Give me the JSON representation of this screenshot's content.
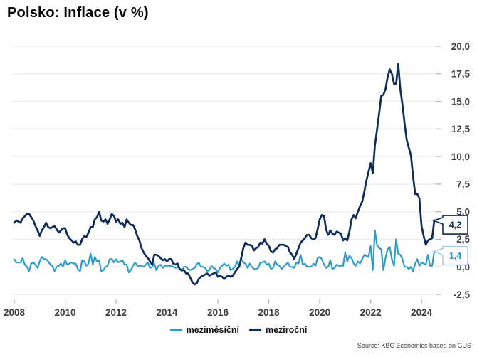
{
  "header": {
    "title": "Polsko: Inflace (v %)"
  },
  "footer": {
    "source": "Source: KBC Economics based on GUS"
  },
  "legend": {
    "items": [
      {
        "label": "meziměsíční",
        "color": "#2f9cc7"
      },
      {
        "label": "meziroční",
        "color": "#0f2d5a"
      }
    ]
  },
  "chart_data": {
    "type": "line",
    "title": "Polsko: Inflace (v %)",
    "xlabel": "",
    "ylabel": "",
    "frequency": "monthly",
    "x_start": "2008-01",
    "x_end": "2024-07",
    "ylim": [
      -2.5,
      20.0
    ],
    "grid": "horizontal",
    "grid_color": "#ededed",
    "tick_color": "#b5b5b5",
    "axis_label_color": "#3d3d3d",
    "legend_position": "bottom",
    "y_axis": {
      "side": "right",
      "ticks": [
        {
          "value": 20.0,
          "label": "20,0"
        },
        {
          "value": 17.5,
          "label": "17,5"
        },
        {
          "value": 15.0,
          "label": "15,0"
        },
        {
          "value": 12.5,
          "label": "12,5"
        },
        {
          "value": 10.0,
          "label": "10,0"
        },
        {
          "value": 7.5,
          "label": "7,5"
        },
        {
          "value": 5.0,
          "label": "5,0"
        },
        {
          "value": 2.5,
          "label": "2,5"
        },
        {
          "value": 0.0,
          "label": "0,0"
        },
        {
          "value": -2.5,
          "label": "-2,5"
        }
      ]
    },
    "x_axis": {
      "ticks": [
        {
          "value": 2008,
          "label": "2008"
        },
        {
          "value": 2010,
          "label": "2010"
        },
        {
          "value": 2012,
          "label": "2012"
        },
        {
          "value": 2014,
          "label": "2014"
        },
        {
          "value": 2016,
          "label": "2016"
        },
        {
          "value": 2018,
          "label": "2018"
        },
        {
          "value": 2020,
          "label": "2020"
        },
        {
          "value": 2022,
          "label": "2022"
        },
        {
          "value": 2024,
          "label": "2024"
        }
      ]
    },
    "series": [
      {
        "name": "meziměsíční",
        "color": "#2f9cc7",
        "width": 2.2,
        "values": [
          0.7,
          0.4,
          0.4,
          0.4,
          0.8,
          0.2,
          0.0,
          -0.4,
          0.3,
          0.4,
          0.2,
          -0.1,
          0.5,
          0.9,
          0.7,
          0.7,
          0.5,
          0.2,
          0.1,
          -0.4,
          0.0,
          0.1,
          0.3,
          0.0,
          0.6,
          0.2,
          0.3,
          0.4,
          0.3,
          0.3,
          -0.2,
          -0.4,
          0.6,
          0.5,
          0.1,
          0.3,
          1.2,
          0.2,
          0.9,
          0.5,
          0.6,
          -0.4,
          -0.3,
          0.0,
          0.1,
          0.7,
          0.7,
          0.4,
          0.7,
          0.4,
          0.5,
          0.6,
          0.2,
          0.2,
          -0.5,
          -0.3,
          0.1,
          0.4,
          0.1,
          0.1,
          0.1,
          0.0,
          0.2,
          0.4,
          -0.1,
          0.0,
          0.3,
          -0.3,
          0.1,
          0.2,
          -0.1,
          0.1,
          0.1,
          0.1,
          0.1,
          0.0,
          -0.1,
          0.0,
          -0.2,
          -0.4,
          0.0,
          0.0,
          -0.2,
          -0.3,
          -0.2,
          -0.1,
          0.2,
          0.4,
          0.0,
          0.0,
          -0.1,
          -0.4,
          -0.3,
          0.1,
          -0.1,
          -0.2,
          -0.5,
          -0.1,
          0.1,
          0.3,
          0.1,
          0.2,
          -0.3,
          -0.2,
          0.0,
          0.5,
          0.1,
          0.7,
          0.4,
          0.3,
          -0.1,
          0.3,
          0.0,
          -0.2,
          -0.2,
          -0.1,
          0.4,
          0.4,
          0.5,
          0.2,
          0.3,
          -0.2,
          -0.1,
          0.5,
          0.2,
          0.1,
          -0.2,
          0.0,
          0.2,
          0.4,
          0.0,
          0.0,
          -0.1,
          0.4,
          0.3,
          1.1,
          0.2,
          0.3,
          0.0,
          0.0,
          0.0,
          0.3,
          0.1,
          0.8,
          0.9,
          0.7,
          0.2,
          -0.1,
          0.0,
          0.6,
          -0.2,
          -0.1,
          0.2,
          0.1,
          0.1,
          0.1,
          1.3,
          0.5,
          1.0,
          0.8,
          0.3,
          0.1,
          0.5,
          0.3,
          0.7,
          1.1,
          1.0,
          0.9,
          1.9,
          -0.3,
          3.3,
          2.0,
          1.7,
          1.6,
          -0.3,
          0.8,
          1.6,
          1.8,
          0.7,
          0.1,
          2.5,
          1.2,
          1.1,
          0.7,
          0.0,
          0.0,
          -0.2,
          0.0,
          -0.4,
          0.3,
          0.7,
          0.1,
          0.4,
          0.3,
          0.2,
          1.1,
          0.1,
          0.1,
          1.4
        ]
      },
      {
        "name": "meziroční",
        "color": "#0f2d5a",
        "width": 2.7,
        "values": [
          4.0,
          4.2,
          4.1,
          4.0,
          4.4,
          4.6,
          4.8,
          4.8,
          4.5,
          4.2,
          3.7,
          3.3,
          2.8,
          3.3,
          3.6,
          4.0,
          3.6,
          3.5,
          3.6,
          3.7,
          3.4,
          3.1,
          3.3,
          3.5,
          3.5,
          2.9,
          2.6,
          2.4,
          2.2,
          2.3,
          2.0,
          2.0,
          2.5,
          2.8,
          2.7,
          3.1,
          3.6,
          3.6,
          4.3,
          4.5,
          5.0,
          4.2,
          4.1,
          4.3,
          3.9,
          4.3,
          4.8,
          4.6,
          4.1,
          4.3,
          3.9,
          4.0,
          3.6,
          4.3,
          4.0,
          3.8,
          3.8,
          3.4,
          2.8,
          2.4,
          1.7,
          1.3,
          1.0,
          0.8,
          0.5,
          0.2,
          1.1,
          1.1,
          1.0,
          0.8,
          0.6,
          0.7,
          0.5,
          0.7,
          0.7,
          0.3,
          0.2,
          0.3,
          -0.2,
          -0.3,
          -0.3,
          -0.6,
          -0.6,
          -1.0,
          -1.4,
          -1.6,
          -1.5,
          -1.1,
          -0.9,
          -0.8,
          -0.7,
          -0.6,
          -0.8,
          -0.7,
          -0.6,
          -0.5,
          -0.9,
          -0.8,
          -0.9,
          -1.1,
          -0.9,
          -0.8,
          -0.9,
          -0.8,
          -0.5,
          -0.2,
          0.0,
          0.8,
          1.7,
          2.2,
          2.0,
          2.0,
          1.9,
          1.5,
          1.7,
          1.8,
          2.2,
          2.1,
          2.5,
          2.1,
          1.9,
          1.4,
          1.3,
          1.6,
          1.7,
          2.0,
          2.0,
          2.0,
          1.9,
          1.8,
          1.3,
          1.1,
          0.7,
          1.2,
          1.7,
          2.2,
          2.4,
          2.6,
          2.9,
          2.9,
          2.6,
          2.5,
          2.6,
          3.4,
          4.3,
          4.7,
          4.6,
          3.4,
          2.9,
          3.3,
          3.0,
          2.9,
          3.2,
          3.1,
          3.0,
          2.4,
          2.6,
          2.4,
          3.2,
          4.3,
          4.7,
          4.4,
          5.0,
          5.5,
          5.9,
          6.8,
          7.8,
          8.6,
          9.4,
          8.5,
          11.0,
          12.4,
          13.9,
          15.5,
          15.6,
          16.1,
          17.2,
          17.9,
          17.5,
          16.6,
          16.6,
          18.4,
          16.1,
          14.7,
          13.0,
          11.5,
          10.8,
          10.1,
          8.2,
          6.6,
          6.6,
          6.2,
          3.7,
          2.8,
          2.0,
          2.4,
          2.5,
          2.6,
          4.2
        ]
      }
    ],
    "end_labels": [
      {
        "series": "meziroční",
        "label": "4,2",
        "value": 4.2,
        "text_color": "#0f2d5a",
        "border_color": "#0f2d5a"
      },
      {
        "series": "meziměsíční",
        "label": "1,4",
        "value": 1.4,
        "text_color": "#2f9cc7",
        "border_color": "#a3d2e6"
      }
    ]
  }
}
